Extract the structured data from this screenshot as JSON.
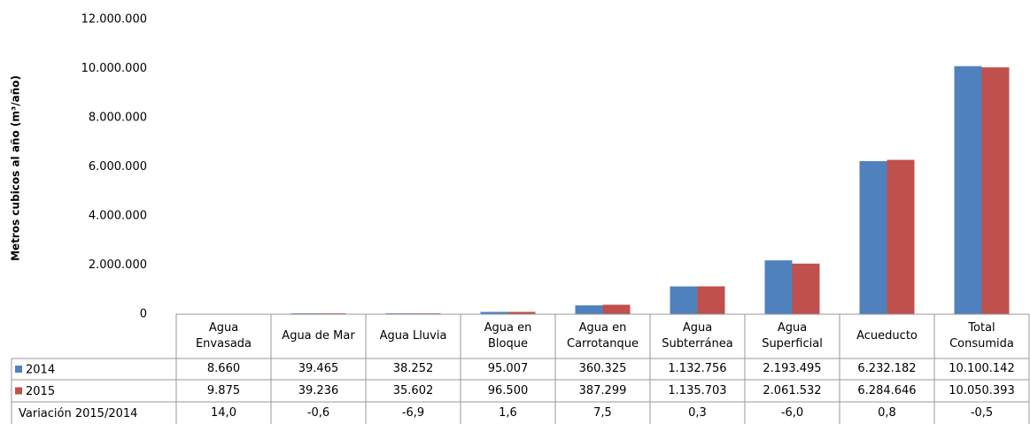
{
  "chart_data": {
    "type": "bar",
    "ylabel": "Metros cubicos al año (m³/año)",
    "categories": [
      "Agua\nEnvasada",
      "Agua de Mar",
      "Agua Lluvia",
      "Agua en\nBloque",
      "Agua en\nCarrotanque",
      "Agua\nSubterránea",
      "Agua\nSuperficial",
      "Acueducto",
      "Total\nConsumida"
    ],
    "series": [
      {
        "name": "2014",
        "color": "#4f81bd",
        "values": [
          8660,
          39465,
          38252,
          95007,
          360325,
          1132756,
          2193495,
          6232182,
          10100142
        ],
        "value_labels": [
          "8.660",
          "39.465",
          "38.252",
          "95.007",
          "360.325",
          "1.132.756",
          "2.193.495",
          "6.232.182",
          "10.100.142"
        ]
      },
      {
        "name": "2015",
        "color": "#c0504d",
        "values": [
          9875,
          39236,
          35602,
          96500,
          387299,
          1135703,
          2061532,
          6284646,
          10050393
        ],
        "value_labels": [
          "9.875",
          "39.236",
          "35.602",
          "96.500",
          "387.299",
          "1.135.703",
          "2.061.532",
          "6.284.646",
          "10.050.393"
        ]
      }
    ],
    "variation": {
      "name": "Variación 2015/2014",
      "values": [
        14.0,
        -0.6,
        -6.9,
        1.6,
        7.5,
        0.3,
        -6.0,
        0.8,
        -0.5
      ],
      "value_labels": [
        "14,0",
        "-0,6",
        "-6,9",
        "1,6",
        "7,5",
        "0,3",
        "-6,0",
        "0,8",
        "-0,5"
      ]
    },
    "ylim": [
      0,
      12000000
    ],
    "yticks": [
      0,
      {
        "value": 2000000,
        "label": "2.000.000"
      },
      {
        "value": 4000000,
        "label": "4.000.000"
      },
      {
        "value": 6000000,
        "label": "6.000.000"
      },
      {
        "value": 8000000,
        "label": "8.000.000"
      },
      {
        "value": 10000000,
        "label": "10.000.000"
      },
      {
        "value": 12000000,
        "label": "12.000.000"
      }
    ],
    "grid": false
  }
}
